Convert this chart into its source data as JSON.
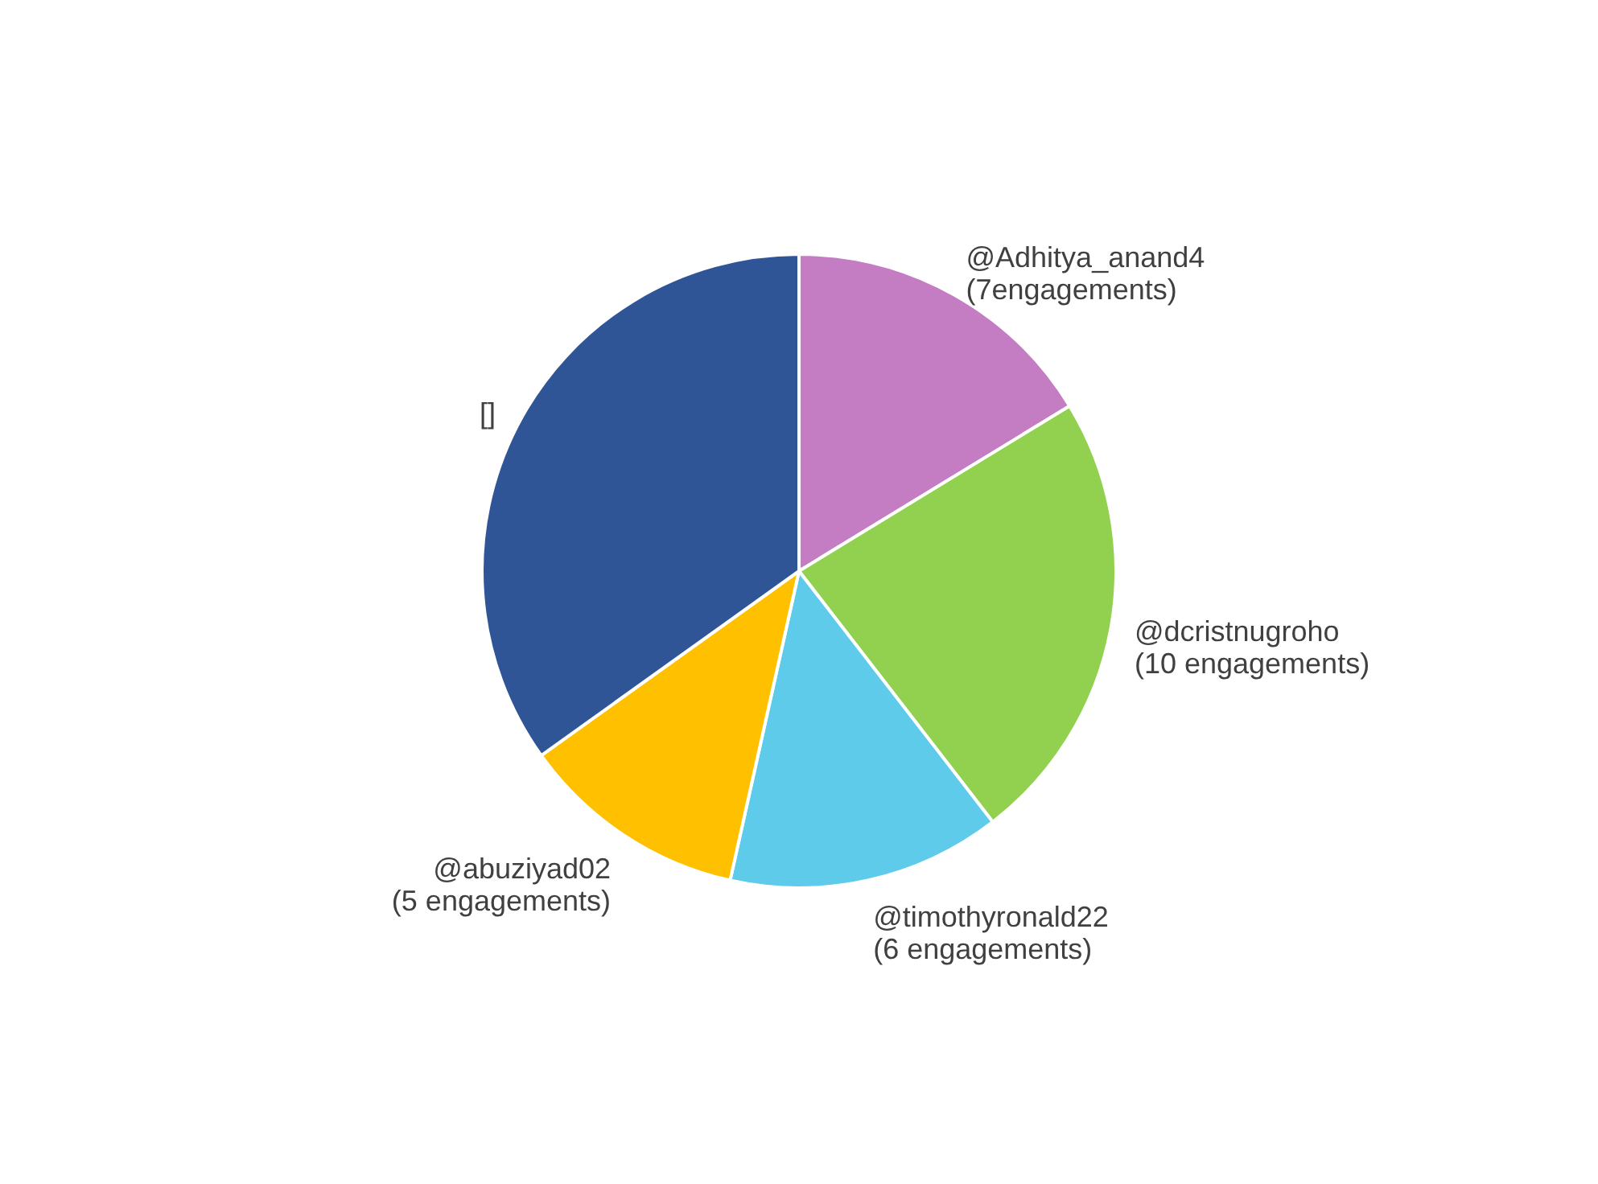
{
  "chart_data": {
    "type": "pie",
    "categories": [
      "@Adhitya_anand4 (7engagements)",
      "@dcristnugroho (10 engagements)",
      "@timothyronald22 (6 engagements)",
      "@abuziyad02 (5 engagements)",
      "[]"
    ],
    "values": [
      7,
      10,
      6,
      5,
      15
    ],
    "colors": [
      "#c47cc2",
      "#92d050",
      "#5ecbea",
      "#ffc000",
      "#2f5597"
    ]
  }
}
